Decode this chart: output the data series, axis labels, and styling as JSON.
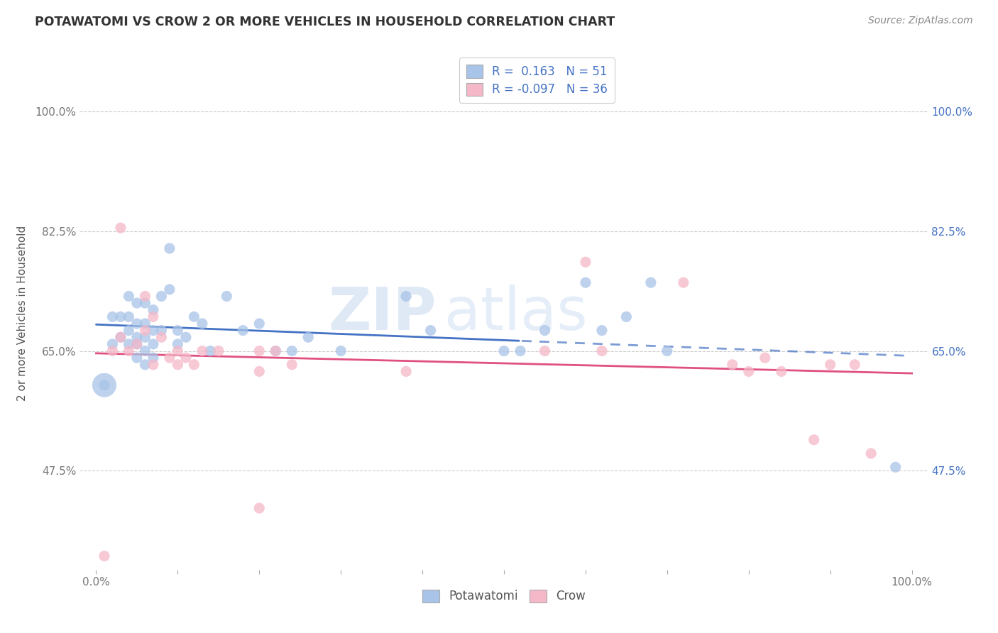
{
  "title": "POTAWATOMI VS CROW 2 OR MORE VEHICLES IN HOUSEHOLD CORRELATION CHART",
  "source": "Source: ZipAtlas.com",
  "ylabel": "2 or more Vehicles in Household",
  "r1": 0.163,
  "n1": 51,
  "r2": -0.097,
  "n2": 36,
  "color1": "#a8c4e8",
  "color2": "#f5b8c8",
  "line1_color": "#4472c4",
  "line2_color": "#e05080",
  "watermark_zip": "ZIP",
  "watermark_atlas": "atlas",
  "legend_label1": "Potawatomi",
  "legend_label2": "Crow",
  "ytick_vals": [
    0.475,
    0.65,
    0.825,
    1.0
  ],
  "ytick_labels": [
    "47.5%",
    "65.0%",
    "82.5%",
    "100.0%"
  ],
  "xlim": [
    -0.02,
    1.02
  ],
  "ylim": [
    0.33,
    1.08
  ],
  "potawatomi_x": [
    0.01,
    0.02,
    0.02,
    0.03,
    0.03,
    0.04,
    0.04,
    0.04,
    0.04,
    0.05,
    0.05,
    0.05,
    0.05,
    0.05,
    0.06,
    0.06,
    0.06,
    0.06,
    0.06,
    0.07,
    0.07,
    0.07,
    0.07,
    0.08,
    0.08,
    0.09,
    0.09,
    0.1,
    0.1,
    0.11,
    0.12,
    0.13,
    0.14,
    0.16,
    0.18,
    0.2,
    0.22,
    0.24,
    0.26,
    0.3,
    0.38,
    0.41,
    0.5,
    0.52,
    0.55,
    0.6,
    0.62,
    0.65,
    0.68,
    0.7,
    0.98
  ],
  "potawatomi_y": [
    0.6,
    0.66,
    0.7,
    0.67,
    0.7,
    0.66,
    0.68,
    0.7,
    0.73,
    0.64,
    0.66,
    0.67,
    0.69,
    0.72,
    0.63,
    0.65,
    0.67,
    0.69,
    0.72,
    0.64,
    0.66,
    0.68,
    0.71,
    0.68,
    0.73,
    0.74,
    0.8,
    0.66,
    0.68,
    0.67,
    0.7,
    0.69,
    0.65,
    0.73,
    0.68,
    0.69,
    0.65,
    0.65,
    0.67,
    0.65,
    0.73,
    0.68,
    0.65,
    0.65,
    0.68,
    0.75,
    0.68,
    0.7,
    0.75,
    0.65,
    0.48
  ],
  "crow_x": [
    0.01,
    0.02,
    0.03,
    0.03,
    0.04,
    0.05,
    0.06,
    0.06,
    0.07,
    0.07,
    0.08,
    0.09,
    0.1,
    0.1,
    0.11,
    0.12,
    0.13,
    0.15,
    0.2,
    0.2,
    0.22,
    0.24,
    0.38,
    0.55,
    0.6,
    0.62,
    0.72,
    0.78,
    0.8,
    0.82,
    0.84,
    0.88,
    0.9,
    0.93,
    0.95,
    0.2
  ],
  "crow_y": [
    0.35,
    0.65,
    0.83,
    0.67,
    0.65,
    0.66,
    0.68,
    0.73,
    0.63,
    0.7,
    0.67,
    0.64,
    0.63,
    0.65,
    0.64,
    0.63,
    0.65,
    0.65,
    0.65,
    0.62,
    0.65,
    0.63,
    0.62,
    0.65,
    0.78,
    0.65,
    0.75,
    0.63,
    0.62,
    0.64,
    0.62,
    0.52,
    0.63,
    0.63,
    0.5,
    0.42
  ]
}
